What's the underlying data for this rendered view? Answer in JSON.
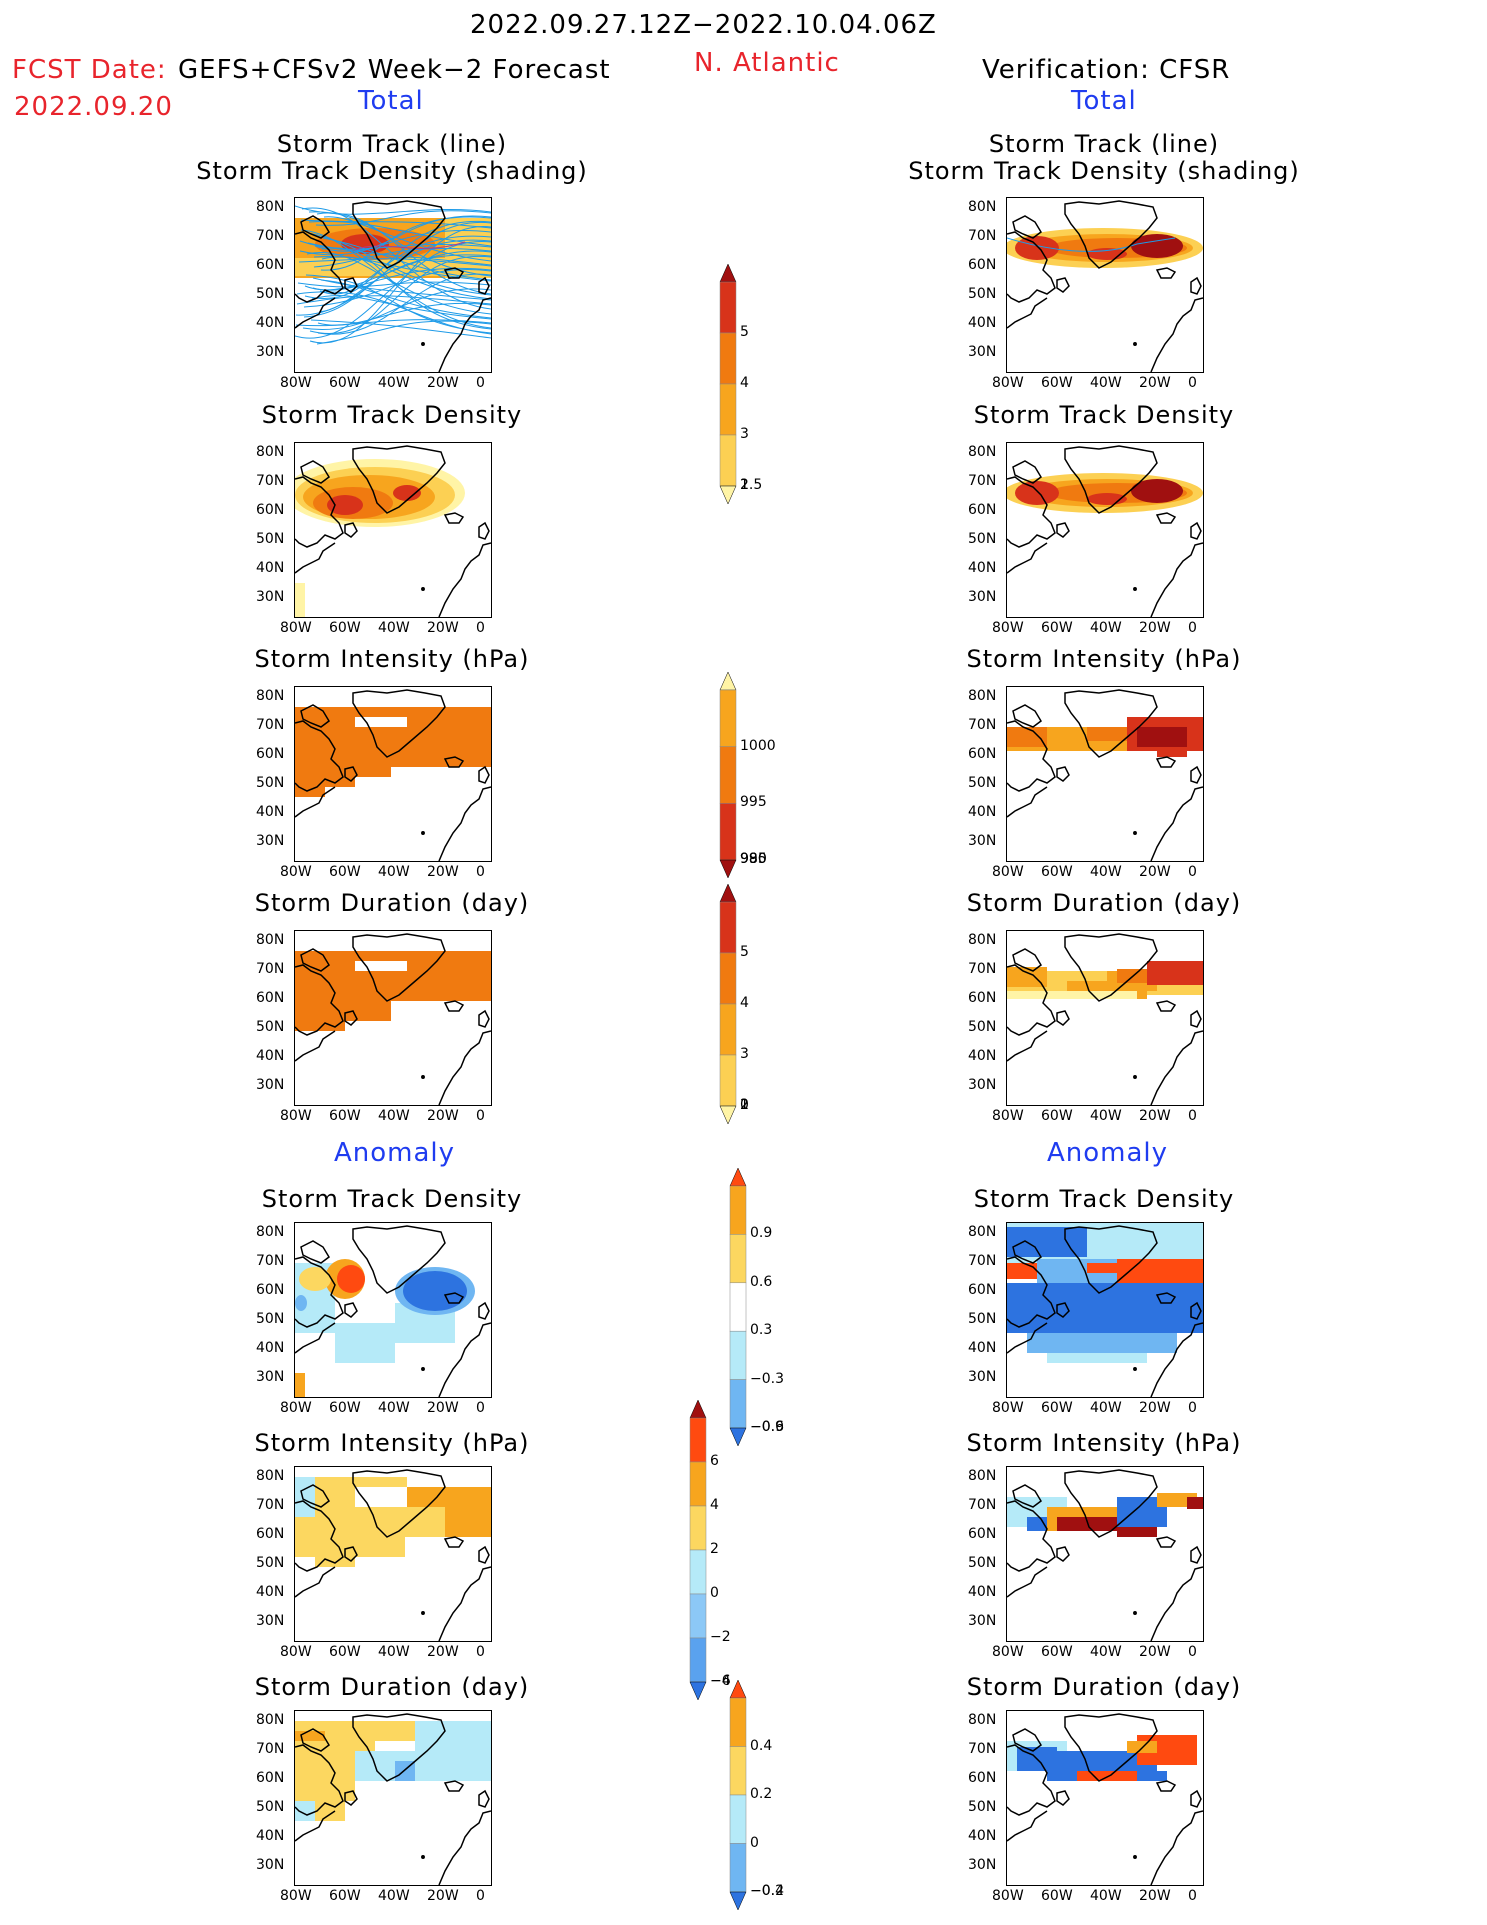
{
  "header": {
    "date_range": "2022.09.27.12Z−2022.10.04.06Z",
    "fcst_label": "FCST Date:",
    "fcst_model": "GEFS+CFSv2 Week−2 Forecast",
    "fcst_date": "2022.09.20",
    "region": "N. Atlantic",
    "verification": "Verification: CFSR"
  },
  "sections": {
    "total": "Total",
    "anomaly": "Anomaly"
  },
  "panel_titles": {
    "track_line": "Storm Track (line)",
    "track_shading": "Storm Track Density (shading)",
    "density": "Storm Track Density",
    "intensity": "Storm Intensity (hPa)",
    "duration": "Storm Duration (day)"
  },
  "axes": {
    "lat_ticks": [
      "80N",
      "70N",
      "60N",
      "50N",
      "40N",
      "30N"
    ],
    "lon_ticks": [
      "80W",
      "60W",
      "40W",
      "20W",
      "0"
    ]
  },
  "colorbars": {
    "density_total": {
      "labels": [
        "5",
        "4",
        "3",
        "2",
        "1.5",
        "1"
      ],
      "colors": [
        "#a01010",
        "#d8331a",
        "#f07a10",
        "#f7a51e",
        "#fcd053",
        "#fff4a6"
      ]
    },
    "intensity_total": {
      "labels": [
        "1000",
        "995",
        "990",
        "985",
        "980"
      ],
      "colors": [
        "#fff4a6",
        "#f7a51e",
        "#f07a10",
        "#d8331a",
        "#a01010"
      ]
    },
    "duration_total": {
      "labels": [
        "5",
        "4",
        "3",
        "2",
        "1",
        "0"
      ],
      "colors": [
        "#a01010",
        "#d8331a",
        "#f07a10",
        "#f7a51e",
        "#fcd053",
        "#fff4a6"
      ]
    },
    "density_anom": {
      "labels": [
        "0.9",
        "0.6",
        "0.3",
        "−0.3",
        "−0.6",
        "−0.9"
      ],
      "colors": [
        "#ff4a10",
        "#f7a51e",
        "#fcd760",
        "#ffffff",
        "#b5eaf8",
        "#6fb6f2",
        "#2d73e0"
      ]
    },
    "intensity_anom": {
      "labels": [
        "6",
        "4",
        "2",
        "0",
        "−2",
        "−4",
        "−6"
      ],
      "colors": [
        "#a01010",
        "#ff4a10",
        "#f7a51e",
        "#fcd760",
        "#b5eaf8",
        "#8cc8f6",
        "#5aa2ee",
        "#2d73e0"
      ]
    },
    "duration_anom": {
      "labels": [
        "0.4",
        "0.2",
        "0",
        "−0.2",
        "−0.4"
      ],
      "colors": [
        "#ff4a10",
        "#f7a51e",
        "#fcd760",
        "#b5eaf8",
        "#6fb6f2",
        "#2d73e0"
      ]
    }
  }
}
